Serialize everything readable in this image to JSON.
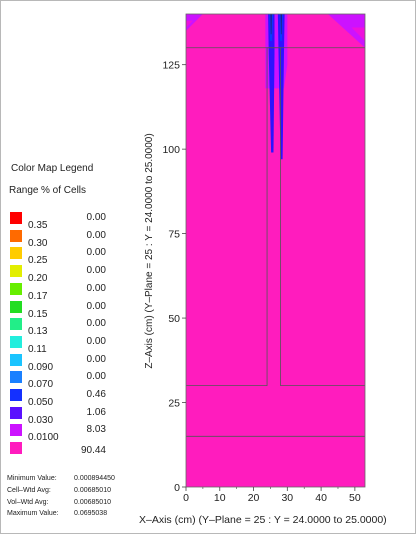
{
  "chart_data": {
    "type": "heatmap",
    "xlabel": "X–Axis (cm) (Y–Plane = 25 : Y = 24.0000 to 25.0000)",
    "ylabel": "Z–Axis (cm) (Y–Plane = 25 : Y = 24.0000 to 25.0000)",
    "xlim": [
      0,
      53
    ],
    "ylim": [
      0,
      140
    ],
    "x_ticks": [
      "0",
      "10",
      "20",
      "30",
      "40",
      "50"
    ],
    "y_ticks": [
      "0",
      "25",
      "50",
      "75",
      "100",
      "125"
    ],
    "background_color": "#ff1cbe",
    "outlines": [
      {
        "points": [
          [
            0,
            30
          ],
          [
            24,
            30
          ],
          [
            24,
            130
          ],
          [
            28,
            130
          ],
          [
            28,
            30
          ],
          [
            53,
            30
          ]
        ]
      },
      {
        "points": [
          [
            0,
            130
          ],
          [
            53,
            130
          ]
        ]
      },
      {
        "points": [
          [
            0,
            15
          ],
          [
            53,
            15
          ]
        ]
      }
    ],
    "regions": [
      {
        "points": [
          [
            0,
            140
          ],
          [
            5,
            140
          ],
          [
            0,
            135
          ]
        ],
        "color": "#cc12ff"
      },
      {
        "points": [
          [
            0,
            138
          ],
          [
            2,
            138
          ],
          [
            0,
            136
          ]
        ],
        "color": "#ee10dd"
      },
      {
        "points": [
          [
            53,
            140
          ],
          [
            42,
            140
          ],
          [
            53,
            130
          ]
        ],
        "color": "#cc12ff"
      },
      {
        "points": [
          [
            53,
            136
          ],
          [
            49,
            136
          ],
          [
            53,
            132
          ]
        ],
        "color": "#ee10dd"
      },
      {
        "points": [
          [
            23.5,
            140
          ],
          [
            30,
            140
          ],
          [
            30,
            125
          ],
          [
            29,
            118
          ],
          [
            23.5,
            118
          ]
        ],
        "color": "#cc12ff"
      },
      {
        "points": [
          [
            24.3,
            140
          ],
          [
            26.2,
            140
          ],
          [
            26.2,
            128
          ],
          [
            25.9,
            99
          ],
          [
            25.2,
            99
          ],
          [
            24.5,
            128
          ]
        ],
        "color": "#2c12ff"
      },
      {
        "points": [
          [
            27.2,
            140
          ],
          [
            29.2,
            140
          ],
          [
            29.0,
            128
          ],
          [
            28.6,
            97
          ],
          [
            28.0,
            97
          ],
          [
            27.4,
            128
          ]
        ],
        "color": "#2c12ff"
      },
      {
        "points": [
          [
            24.6,
            140
          ],
          [
            25.8,
            140
          ],
          [
            25.5,
            132
          ],
          [
            24.9,
            132
          ]
        ],
        "color": "#0a3aff"
      },
      {
        "points": [
          [
            27.7,
            140
          ],
          [
            28.7,
            140
          ],
          [
            28.4,
            132
          ],
          [
            27.9,
            132
          ]
        ],
        "color": "#0a3aff"
      },
      {
        "points": [
          [
            25.0,
            140
          ],
          [
            25.4,
            140
          ],
          [
            25.3,
            134
          ],
          [
            25.1,
            134
          ]
        ],
        "color": "#1e1e80"
      },
      {
        "points": [
          [
            28.0,
            140
          ],
          [
            28.4,
            140
          ],
          [
            28.3,
            134
          ],
          [
            28.1,
            134
          ]
        ],
        "color": "#1e1e80"
      }
    ]
  },
  "legend": {
    "title": "Color Map Legend",
    "range_header": "Range",
    "pct_header": "% of Cells",
    "items": [
      {
        "range": "0.35",
        "pct": "0.00",
        "color": "#ff0000"
      },
      {
        "range": "0.30",
        "pct": "0.00",
        "color": "#ff6a00"
      },
      {
        "range": "0.25",
        "pct": "0.00",
        "color": "#ffcc00"
      },
      {
        "range": "0.20",
        "pct": "0.00",
        "color": "#e2ee00"
      },
      {
        "range": "0.17",
        "pct": "0.00",
        "color": "#66ee00"
      },
      {
        "range": "0.15",
        "pct": "0.00",
        "color": "#22dd22"
      },
      {
        "range": "0.13",
        "pct": "0.00",
        "color": "#22ee88"
      },
      {
        "range": "0.11",
        "pct": "0.00",
        "color": "#22eedd"
      },
      {
        "range": "0.090",
        "pct": "0.00",
        "color": "#1ac4ff"
      },
      {
        "range": "0.070",
        "pct": "0.00",
        "color": "#1a80ff"
      },
      {
        "range": "0.050",
        "pct": "0.46",
        "color": "#1430ff"
      },
      {
        "range": "0.030",
        "pct": "1.06",
        "color": "#5a10ff"
      },
      {
        "range": "0.0100",
        "pct": "8.03",
        "color": "#cc12ff"
      },
      {
        "range": "",
        "pct": "90.44",
        "color": "#ff1cbe"
      }
    ]
  },
  "stats": [
    {
      "label": "Minimum Value:",
      "value": "0.000894450"
    },
    {
      "label": "Cell–Wtd Avg:",
      "value": "0.00685010"
    },
    {
      "label": "Vol–Wtd Avg:",
      "value": "0.00685010"
    },
    {
      "label": "Maximum Value:",
      "value": "0.0695038"
    }
  ]
}
